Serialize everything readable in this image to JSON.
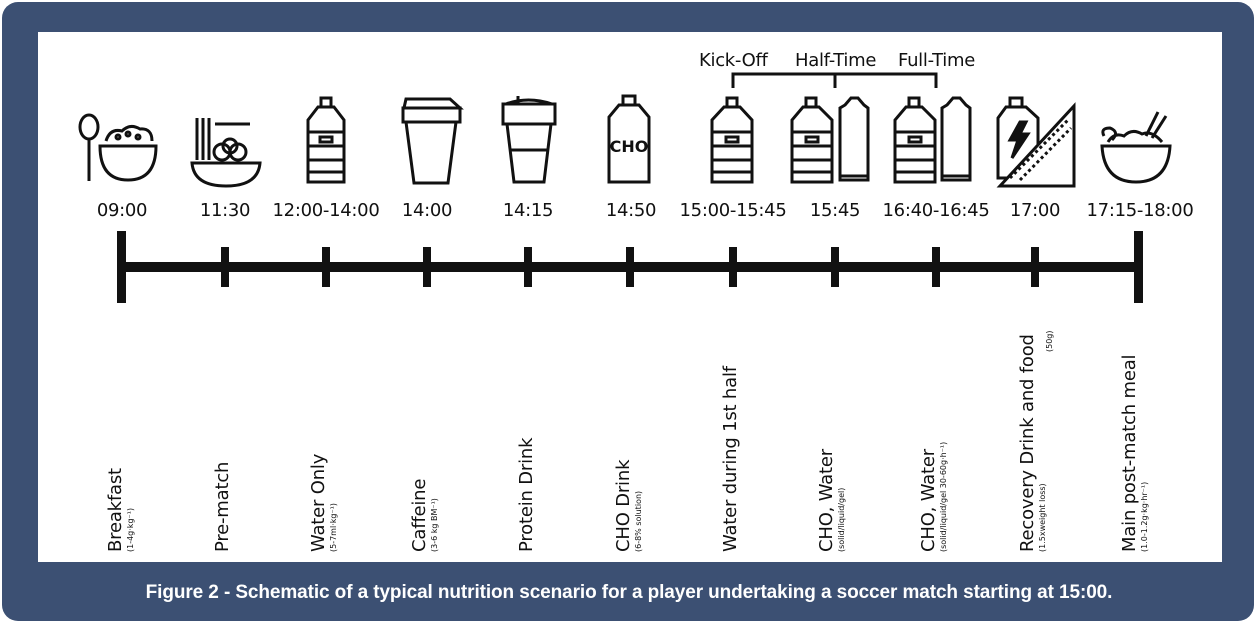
{
  "caption": "Figure 2 - Schematic of a typical nutrition scenario for a player undertaking a soccer match starting at 15:00.",
  "phases": {
    "kickoff": "Kick-Off",
    "halftime": "Half-Time",
    "fulltime": "Full-Time"
  },
  "cho_label": "CHO",
  "events": [
    {
      "time": "09:00",
      "label": "Breakfast",
      "sub": "(1-4g·kg⁻¹)",
      "icon": "porridge-bowl-icon"
    },
    {
      "time": "11:30",
      "label": "Pre-match",
      "sub": "",
      "icon": "pasta-bowl-icon"
    },
    {
      "time": "12:00-14:00",
      "label": "Water Only",
      "sub": "(5-7ml·kg⁻¹)",
      "icon": "water-bottle-icon"
    },
    {
      "time": "14:00",
      "label": "Caffeine",
      "sub": "(3-6 kg BM⁻¹)",
      "icon": "coffee-cup-icon"
    },
    {
      "time": "14:15",
      "label": "Protein Drink",
      "sub": "",
      "icon": "shaker-icon"
    },
    {
      "time": "14:50",
      "label": "CHO Drink",
      "sub": "(6-8% solution)",
      "icon": "cho-bottle-icon"
    },
    {
      "time": "15:00-15:45",
      "label": "Water during 1st half",
      "sub": "",
      "icon": "water-bottle-icon"
    },
    {
      "time": "15:45",
      "label": "CHO, Water",
      "sub": "(solid/liquid/gel)",
      "icon": "bottle-and-gel-icon"
    },
    {
      "time": "16:40-16:45",
      "label": "CHO, Water",
      "sub": "(solid/liquid/gel 30-60g·h⁻¹)",
      "icon": "bottle-and-gel-icon"
    },
    {
      "time": "17:00",
      "label": "Recovery Drink and food",
      "sub": "(1.5xweight loss)",
      "sub2": "(50g)",
      "icon": "sports-drink-sandwich-icon"
    },
    {
      "time": "17:15-18:00",
      "label": "Main post-match meal",
      "sub": "(1.0-1.2g·kg·hr⁻¹)",
      "icon": "noodle-bowl-icon"
    }
  ],
  "colors": {
    "frame": "#3c5073",
    "line": "#111111"
  }
}
